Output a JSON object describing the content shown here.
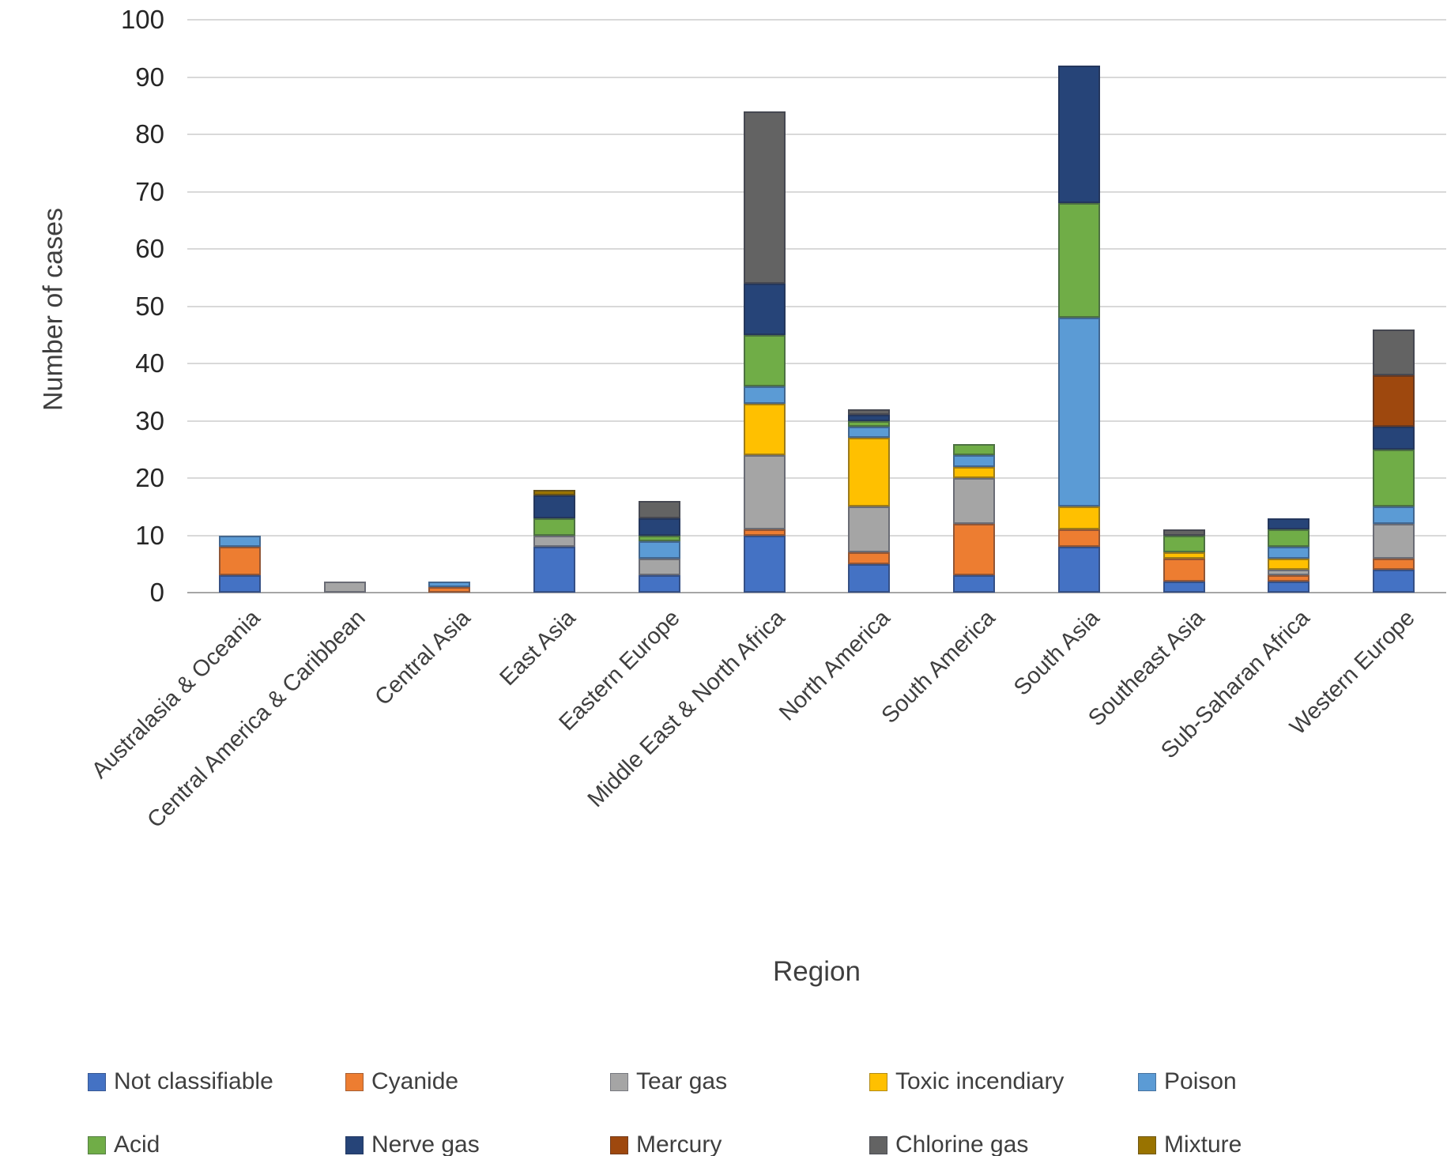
{
  "chart_data": {
    "type": "bar",
    "stacked": true,
    "xlabel": "Region",
    "ylabel": "Number of cases",
    "ylim": [
      0,
      100
    ],
    "yticks": [
      0,
      10,
      20,
      30,
      40,
      50,
      60,
      70,
      80,
      90,
      100
    ],
    "grid": true,
    "legend_position": "bottom",
    "categories": [
      "Australasia & Oceania",
      "Central America & Caribbean",
      "Central Asia",
      "East Asia",
      "Eastern Europe",
      "Middle East & North Africa",
      "North America",
      "South America",
      "South Asia",
      "Southeast Asia",
      "Sub-Saharan Africa",
      "Western Europe"
    ],
    "series": [
      {
        "name": "Not classifiable",
        "color": "#4472C4",
        "values": [
          3,
          0,
          0,
          8,
          3,
          10,
          5,
          3,
          8,
          2,
          2,
          4
        ]
      },
      {
        "name": "Cyanide",
        "color": "#ED7D31",
        "values": [
          5,
          0,
          1,
          0,
          0,
          1,
          2,
          9,
          3,
          4,
          1,
          2
        ]
      },
      {
        "name": "Tear gas",
        "color": "#A5A5A5",
        "values": [
          0,
          2,
          0,
          2,
          3,
          13,
          8,
          8,
          0,
          0,
          1,
          6
        ]
      },
      {
        "name": "Toxic incendiary",
        "color": "#FFC000",
        "values": [
          0,
          0,
          0,
          0,
          0,
          9,
          12,
          2,
          4,
          1,
          2,
          0
        ]
      },
      {
        "name": "Poison",
        "color": "#5B9BD5",
        "values": [
          2,
          0,
          1,
          0,
          3,
          3,
          2,
          2,
          33,
          0,
          2,
          3
        ]
      },
      {
        "name": "Acid",
        "color": "#70AD47",
        "values": [
          0,
          0,
          0,
          3,
          1,
          9,
          1,
          2,
          20,
          3,
          3,
          10
        ]
      },
      {
        "name": "Nerve gas",
        "color": "#264478",
        "values": [
          0,
          0,
          0,
          4,
          3,
          9,
          1,
          0,
          24,
          0,
          2,
          4
        ]
      },
      {
        "name": "Mercury",
        "color": "#9E480E",
        "values": [
          0,
          0,
          0,
          0,
          0,
          0,
          0,
          0,
          0,
          0,
          0,
          9
        ]
      },
      {
        "name": "Chlorine gas",
        "color": "#636363",
        "values": [
          0,
          0,
          0,
          0,
          3,
          30,
          1,
          0,
          0,
          1,
          0,
          8
        ]
      },
      {
        "name": "Mixture",
        "color": "#997300",
        "values": [
          0,
          0,
          0,
          1,
          0,
          0,
          0,
          0,
          0,
          0,
          0,
          0
        ]
      }
    ]
  }
}
